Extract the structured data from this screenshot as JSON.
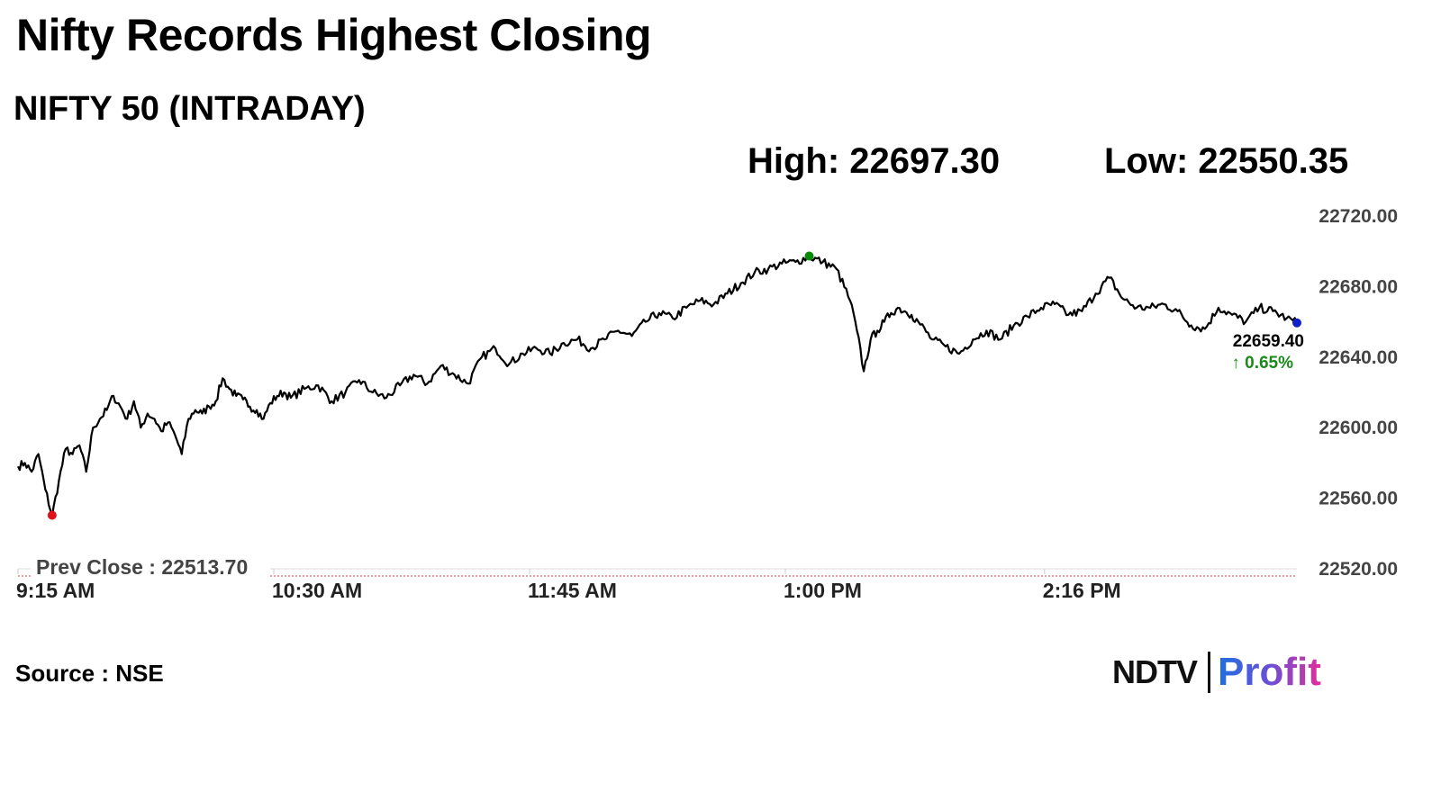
{
  "header": {
    "title": "Nifty Records Highest Closing",
    "subtitle": "NIFTY 50 (INTRADAY)",
    "high_text": "High: 22697.30",
    "low_text": "Low: 22550.35"
  },
  "footer": {
    "source": "Source : NSE",
    "logo_ndtv": "NDTV",
    "logo_profit": "Profit"
  },
  "colors": {
    "line": "#000000",
    "high_marker": "#0a8a0a",
    "low_marker": "#e0101c",
    "last_marker": "#1020c8",
    "prev_close_line": "#e08080",
    "change_text": "#1a8a1a"
  },
  "chart_data": {
    "type": "line",
    "title": "NIFTY 50 (INTRADAY)",
    "xlabel": "",
    "ylabel": "",
    "ylim": [
      22520,
      22720
    ],
    "yticks": [
      22720,
      22680,
      22640,
      22600,
      22560,
      22520
    ],
    "ytick_labels": [
      "22720.00",
      "22680.00",
      "22640.00",
      "22600.00",
      "22560.00",
      "22520.00"
    ],
    "x_unit": "minutes",
    "xlim": [
      0,
      375
    ],
    "xticks": [
      0,
      75,
      150,
      225,
      301
    ],
    "xtick_labels": [
      "9:15 AM",
      "10:30 AM",
      "11:45 AM",
      "1:00 PM",
      "2:16 PM"
    ],
    "prev_close": 22513.7,
    "prev_close_label": "Prev Close : 22513.70",
    "high": 22697.3,
    "low": 22550.35,
    "last_value": 22659.4,
    "last_value_label": "22659.40",
    "change_label": "↑ 0.65%",
    "series": [
      {
        "x": [
          0,
          2,
          4,
          6,
          8,
          10,
          12,
          14,
          16,
          18,
          20,
          22,
          24,
          26,
          28,
          30,
          32,
          34,
          36,
          38,
          40,
          42,
          44,
          46,
          48,
          50,
          52,
          54,
          56,
          58,
          60,
          62,
          64,
          66,
          68,
          70,
          72,
          74,
          76,
          78,
          80,
          84,
          88,
          92,
          96,
          100,
          104,
          108,
          112,
          116,
          120,
          124,
          128,
          132,
          136,
          140,
          144,
          148,
          152,
          156,
          160,
          164,
          168,
          172,
          176,
          180,
          184,
          188,
          192,
          196,
          200,
          204,
          208,
          212,
          216,
          220,
          224,
          228,
          232,
          236,
          240,
          244,
          246,
          248,
          250,
          252,
          254,
          256,
          258,
          260,
          262,
          264,
          268,
          272,
          276,
          280,
          284,
          288,
          292,
          296,
          300,
          304,
          308,
          312,
          316,
          320,
          324,
          328,
          332,
          336,
          340,
          344,
          348,
          352,
          356,
          360,
          364,
          368,
          372,
          375
        ],
        "values": [
          22578,
          22580,
          22575,
          22585,
          22565,
          22550,
          22570,
          22588,
          22585,
          22590,
          22575,
          22600,
          22605,
          22610,
          22618,
          22612,
          22605,
          22615,
          22600,
          22608,
          22605,
          22598,
          22603,
          22596,
          22585,
          22605,
          22610,
          22608,
          22612,
          22615,
          22628,
          22622,
          22618,
          22616,
          22612,
          22610,
          22605,
          22614,
          22618,
          22620,
          22617,
          22622,
          22624,
          22615,
          22620,
          22627,
          22620,
          22617,
          22624,
          22630,
          22625,
          22635,
          22630,
          22625,
          22640,
          22645,
          22636,
          22642,
          22645,
          22642,
          22648,
          22650,
          22645,
          22650,
          22655,
          22652,
          22660,
          22665,
          22662,
          22668,
          22672,
          22670,
          22676,
          22682,
          22688,
          22690,
          22693,
          22694,
          22697,
          22694,
          22690,
          22672,
          22655,
          22632,
          22650,
          22655,
          22660,
          22665,
          22668,
          22666,
          22664,
          22660,
          22650,
          22646,
          22642,
          22650,
          22655,
          22650,
          22658,
          22663,
          22668,
          22670,
          22664,
          22666,
          22676,
          22685,
          22673,
          22668,
          22668,
          22670,
          22666,
          22658,
          22656,
          22668,
          22664,
          22660,
          22668,
          22666,
          22662,
          22659.4
        ]
      }
    ]
  }
}
